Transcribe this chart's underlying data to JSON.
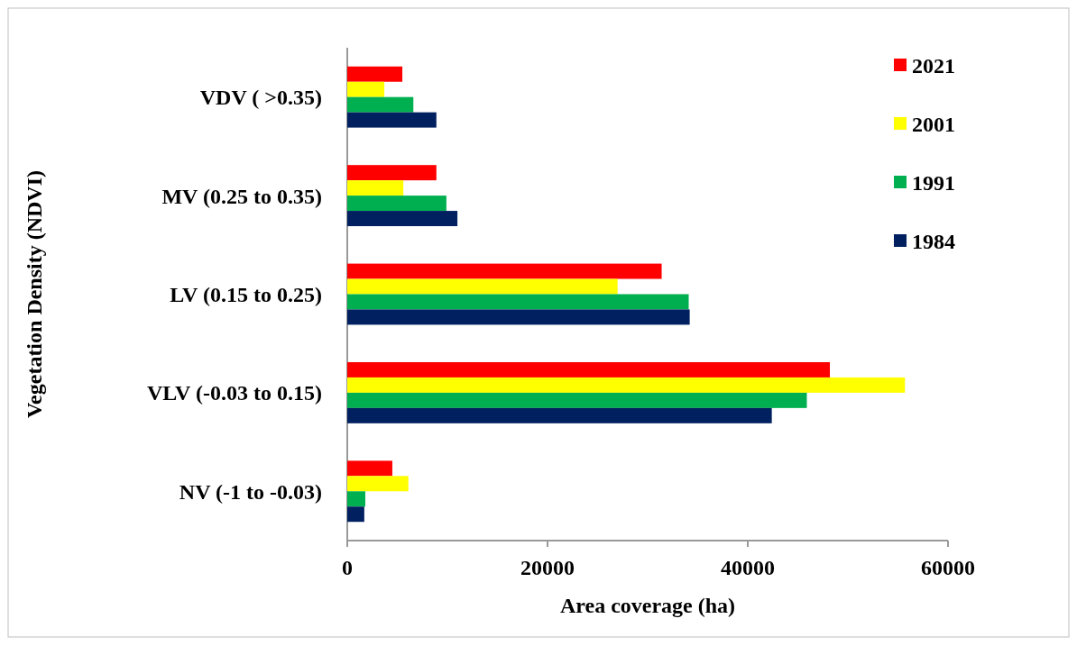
{
  "chart_data": {
    "type": "bar",
    "orientation": "horizontal",
    "xlabel": "Area coverage (ha)",
    "ylabel": "Vegetation Density (NDVI)",
    "categories": [
      "VDV ( >0.35)",
      "MV (0.25 to 0.35)",
      "LV (0.15 to 0.25)",
      "VLV (-0.03 to 0.15)",
      "NV (-1 to -0.03)"
    ],
    "series": [
      {
        "name": "2021",
        "color": "#ff0000",
        "values": [
          5500,
          8900,
          31400,
          48200,
          4500
        ]
      },
      {
        "name": "2001",
        "color": "#ffff00",
        "values": [
          3700,
          5600,
          27000,
          55700,
          6100
        ]
      },
      {
        "name": "1991",
        "color": "#00b050",
        "values": [
          6600,
          9900,
          34100,
          45900,
          1800
        ]
      },
      {
        "name": "1984",
        "color": "#002060",
        "values": [
          8900,
          11000,
          34200,
          42400,
          1700
        ]
      }
    ],
    "xlim": [
      0,
      60000
    ],
    "xticks": [
      0,
      20000,
      40000,
      60000
    ],
    "grid": false,
    "legend": "top right"
  }
}
